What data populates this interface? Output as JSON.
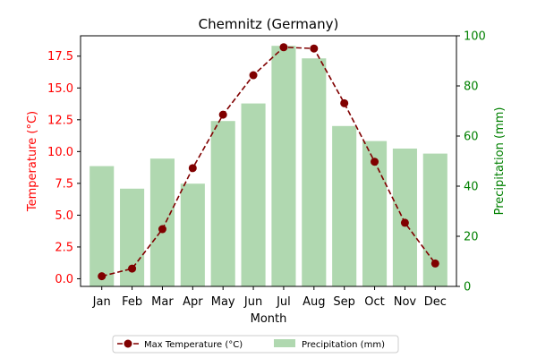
{
  "chart_data": {
    "type": "bar",
    "title": "Chemnitz (Germany)",
    "xlabel": "Month",
    "ylabel_left": "Temperature (°C)",
    "ylabel_right": "Precipitation (mm)",
    "categories": [
      "Jan",
      "Feb",
      "Mar",
      "Apr",
      "May",
      "Jun",
      "Jul",
      "Aug",
      "Sep",
      "Oct",
      "Nov",
      "Dec"
    ],
    "series": [
      {
        "name": "Max Temperature (°C)",
        "kind": "line",
        "axis": "left",
        "color": "#800000",
        "style": "dashed with circle markers",
        "values": [
          0.2,
          0.8,
          3.9,
          8.7,
          12.9,
          16.0,
          18.2,
          18.1,
          13.8,
          9.2,
          4.4,
          1.2
        ]
      },
      {
        "name": "Precipitation (mm)",
        "kind": "bar",
        "axis": "right",
        "color": "#b0d8b0",
        "values": [
          48,
          39,
          51,
          41,
          66,
          73,
          96,
          91,
          64,
          58,
          55,
          53
        ]
      }
    ],
    "ylim_left": [
      -0.6,
      19.1
    ],
    "yticks_left": [
      "0.0",
      "2.5",
      "5.0",
      "7.5",
      "10.0",
      "12.5",
      "15.0",
      "17.5"
    ],
    "ylim_right": [
      0,
      100
    ],
    "yticks_right": [
      "0",
      "20",
      "40",
      "60",
      "80",
      "100"
    ],
    "grid": false,
    "legend_position": "bottom-center, below the plot",
    "colors": {
      "left_axis": "#ff0000",
      "right_axis": "#008000"
    }
  }
}
